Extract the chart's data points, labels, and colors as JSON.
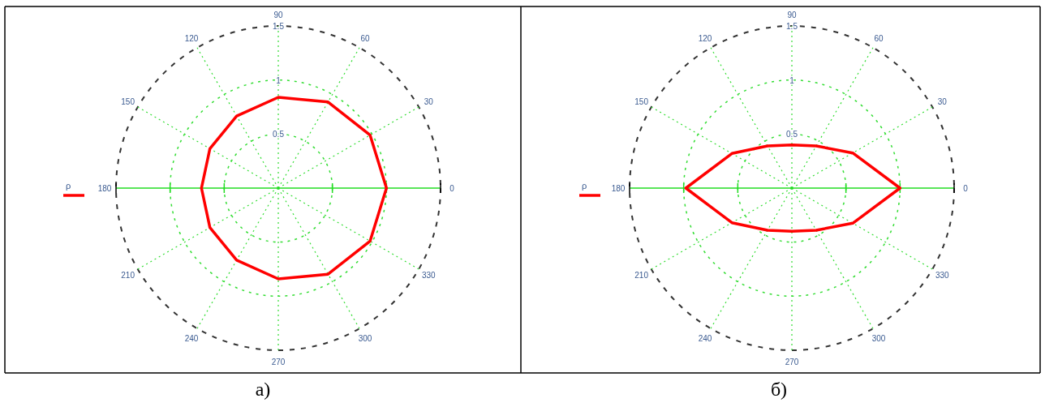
{
  "chart_data": [
    {
      "type": "radar",
      "categories": [
        "90",
        "60",
        "30",
        "0",
        "330",
        "300",
        "270",
        "240",
        "210",
        "180",
        "150",
        "120"
      ],
      "ylim": [
        0,
        1.5
      ],
      "yticks": [
        0.5,
        1,
        1.5
      ],
      "grid": true,
      "legend": "left",
      "annotations": [
        "а)"
      ],
      "series": [
        {
          "name": "ρ",
          "color": "#ff0000",
          "values": [
            0.84,
            0.92,
            0.98,
            1.0,
            0.98,
            0.92,
            0.84,
            0.77,
            0.73,
            0.71,
            0.73,
            0.77
          ]
        }
      ]
    },
    {
      "type": "radar",
      "categories": [
        "90",
        "60",
        "30",
        "0",
        "330",
        "300",
        "270",
        "240",
        "210",
        "180",
        "150",
        "120"
      ],
      "ylim": [
        0,
        1.5
      ],
      "yticks": [
        0.5,
        1,
        1.5
      ],
      "grid": true,
      "legend": "left",
      "annotations": [
        "б)"
      ],
      "series": [
        {
          "name": "ρ",
          "color": "#ff0000",
          "values": [
            0.4,
            0.45,
            0.65,
            1.0,
            0.65,
            0.45,
            0.4,
            0.45,
            0.64,
            0.98,
            0.64,
            0.45
          ]
        }
      ]
    }
  ]
}
